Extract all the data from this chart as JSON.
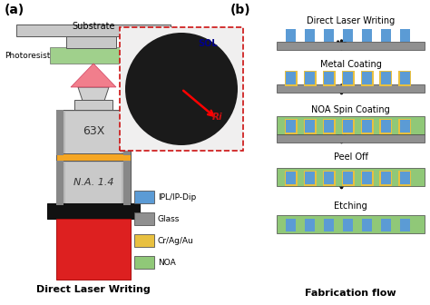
{
  "title_a": "(a)",
  "title_b": "(b)",
  "label_substrate": "Substrate",
  "label_photoresist": "Photoresist",
  "label_63x": "63X",
  "label_na": "N.A. 1.4",
  "label_dlw": "Direct Laser Writing",
  "label_fab": "Fabrication flow",
  "label_sol": "SOL",
  "label_ri": "Ri",
  "legend_items": [
    "IPL/IP-Dip",
    "Glass",
    "Cr/Ag/Au",
    "NOA"
  ],
  "colors": {
    "blue": "#5b9bd5",
    "gray": "#909090",
    "gold": "#e8c040",
    "green": "#90c878",
    "orange": "#f5a623",
    "black": "#1a1a1a",
    "white": "#ffffff",
    "light_gray": "#d2d2d2",
    "silver": "#c0c0c0",
    "dark": "#333333",
    "red_beam": "#f08090",
    "zone_dark": "#1a1a1a",
    "zone_light": "#d4b020",
    "inset_bg": "#f0efef",
    "bg": "#ffffff"
  },
  "steps": [
    "Direct Laser Writing",
    "Metal Coating",
    "NOA Spin Coating",
    "Peel Off",
    "Etching"
  ],
  "step_configs": [
    {
      "glass": true,
      "gold": false,
      "noa": false
    },
    {
      "glass": true,
      "gold": true,
      "noa": false
    },
    {
      "glass": true,
      "gold": true,
      "noa": true
    },
    {
      "glass": false,
      "gold": true,
      "noa": true
    },
    {
      "glass": false,
      "gold": false,
      "noa": true
    }
  ]
}
